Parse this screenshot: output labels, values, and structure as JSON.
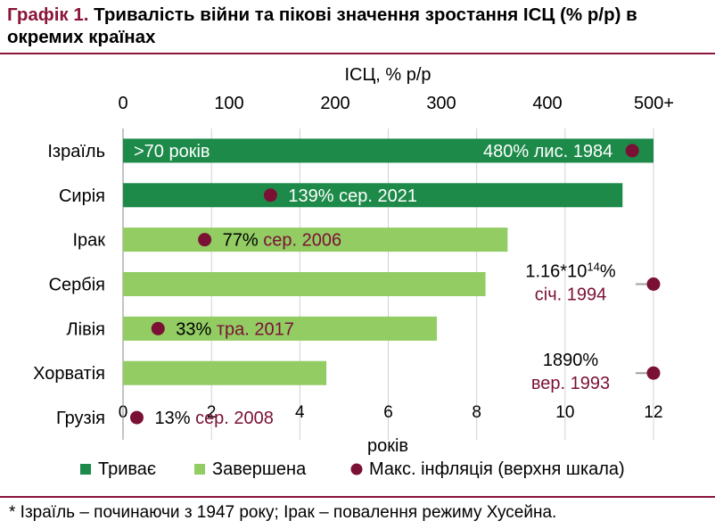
{
  "title": {
    "label": "Графік 1.",
    "text": "Тривалість війни та пікові значення зростання ІСЦ (% р/р) в окремих країнах"
  },
  "footnote": "* Ізраїль – починаючи з 1947 року; Ірак – повалення режиму Хусейна.",
  "colors": {
    "ongoing": "#1d8a4a",
    "completed": "#92cc63",
    "max_inflation": "#7b1035",
    "accent": "#8a1538"
  },
  "chart_data": {
    "type": "bar",
    "orientation": "horizontal",
    "categories": [
      "Ізраїль",
      "Сирія",
      "Ірак",
      "Сербія",
      "Лівія",
      "Хорватія",
      "Грузія"
    ],
    "status": [
      "ongoing",
      "ongoing",
      "completed",
      "completed",
      "completed",
      "completed",
      "completed"
    ],
    "years": [
      12,
      11.3,
      8.7,
      8.2,
      7.1,
      4.6,
      0
    ],
    "xlabel": "років",
    "xlim": [
      0,
      12
    ],
    "xticks": [
      "0",
      "2",
      "4",
      "6",
      "8",
      "10",
      "12"
    ],
    "top_axis": {
      "label": "ІСЦ, % р/р",
      "xlim": [
        0,
        500
      ],
      "ticks": [
        "0",
        "100",
        "200",
        "300",
        "400",
        "500+"
      ]
    },
    "max_inflation": [
      480,
      139,
      77,
      500,
      33,
      500,
      13
    ],
    "annotations": [
      {
        "category": "Ізраїль",
        "left": ">70 років",
        "value": "480%",
        "date": "лис. 1984"
      },
      {
        "category": "Сирія",
        "value": "139%",
        "date": "сер. 2021"
      },
      {
        "category": "Ірак",
        "value": "77%",
        "date": "сер. 2006"
      },
      {
        "category": "Сербія",
        "value": "1.16*10",
        "exp": "14",
        "pct": "%",
        "date": "січ. 1994"
      },
      {
        "category": "Лівія",
        "value": "33%",
        "date": "тра. 2017"
      },
      {
        "category": "Хорватія",
        "value": "1890%",
        "date": "вер. 1993"
      },
      {
        "category": "Грузія",
        "value": "13%",
        "date": "сер. 2008"
      }
    ],
    "legend": [
      {
        "key": "ongoing",
        "label": "Триває"
      },
      {
        "key": "completed",
        "label": "Завершена"
      },
      {
        "key": "max_inflation",
        "label": "Макс. інфляція (верхня шкала)"
      }
    ],
    "legend_position": "bottom",
    "grid": "vertical"
  }
}
